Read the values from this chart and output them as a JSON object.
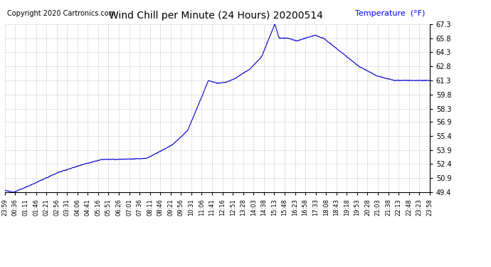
{
  "title": "Wind Chill per Minute (24 Hours) 20200514",
  "ylabel_text": "Temperature  (°F)",
  "copyright": "Copyright 2020 Cartronics.com",
  "line_color": "#0000cc",
  "background_color": "#ffffff",
  "grid_color": "#bbbbbb",
  "ylim": [
    49.4,
    67.3
  ],
  "yticks": [
    49.4,
    50.9,
    52.4,
    53.9,
    55.4,
    56.9,
    58.3,
    59.8,
    61.3,
    62.8,
    64.3,
    65.8,
    67.3
  ],
  "xtick_labels": [
    "23:59",
    "00:36",
    "01:11",
    "01:46",
    "02:21",
    "02:56",
    "03:31",
    "04:06",
    "04:41",
    "05:16",
    "05:51",
    "06:26",
    "07:01",
    "07:36",
    "08:11",
    "08:46",
    "09:21",
    "09:56",
    "10:31",
    "11:06",
    "11:41",
    "12:16",
    "12:51",
    "13:28",
    "14:03",
    "14:38",
    "15:13",
    "15:48",
    "16:23",
    "16:58",
    "17:33",
    "18:08",
    "18:43",
    "19:18",
    "19:53",
    "20:28",
    "21:03",
    "21:38",
    "22:13",
    "22:48",
    "23:23",
    "23:58"
  ],
  "keypoints_t": [
    0,
    30,
    90,
    180,
    270,
    330,
    390,
    480,
    530,
    570,
    620,
    660,
    690,
    720,
    750,
    780,
    830,
    870,
    915,
    930,
    960,
    990,
    1020,
    1050,
    1080,
    1140,
    1200,
    1260,
    1320,
    1380,
    1440
  ],
  "keypoints_v": [
    49.6,
    49.4,
    50.2,
    51.5,
    52.4,
    52.9,
    52.9,
    53.0,
    53.8,
    54.5,
    56.0,
    59.0,
    61.3,
    61.0,
    61.1,
    61.5,
    62.5,
    63.8,
    67.3,
    65.8,
    65.8,
    65.5,
    65.8,
    66.1,
    65.8,
    64.3,
    62.8,
    61.8,
    61.3,
    61.3,
    61.3
  ],
  "num_points": 1440,
  "title_fontsize": 10,
  "copyright_fontsize": 7,
  "ylabel_fontsize": 8,
  "ytick_fontsize": 7,
  "xtick_fontsize": 6
}
